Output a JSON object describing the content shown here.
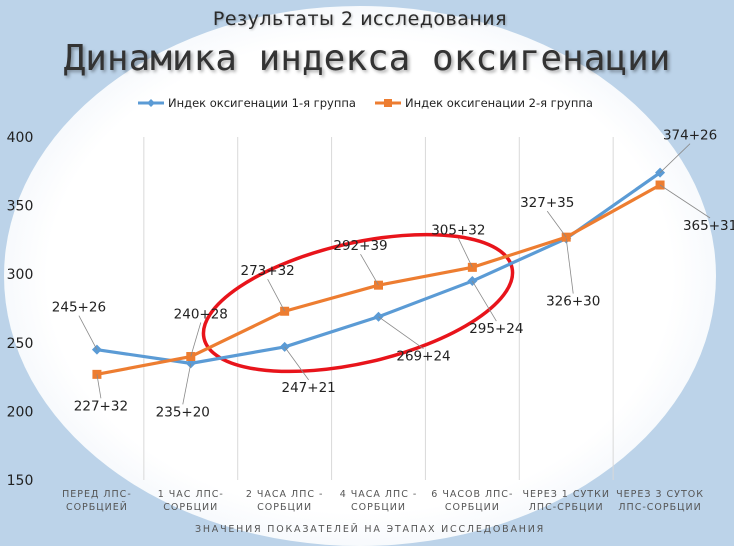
{
  "header": {
    "subtitle": "Результаты 2 исследования",
    "title": "Динамика индекса оксигенации"
  },
  "chart_data": {
    "type": "line",
    "xlabel": "ЗНАЧЕНИЯ ПОКАЗАТЕЛЕЙ НА ЭТАПАХ ИССЛЕДОВАНИЯ",
    "ylabel": "",
    "ylim": [
      150,
      400
    ],
    "yticks": [
      400,
      350,
      300,
      250,
      200,
      150
    ],
    "grid": "vertical",
    "legend_position": "top",
    "categories": [
      "ПЕРЕД ЛПС-СОРБЦИЕЙ",
      "1 ЧАС ЛПС-СОРБЦИИ",
      "2 ЧАСА ЛПС - СОРБЦИИ",
      "4 ЧАСА ЛПС - СОРБЦИИ",
      "6 ЧАСОВ ЛПС-СОРБЦИИ",
      "ЧЕРЕЗ 1 СУТКИ ЛПС-СРБЦИИ",
      "ЧЕРЕЗ 3 СУТОК ЛПС-СОРБЦИИ"
    ],
    "series": [
      {
        "name": "Индек оксигенации 1-я группа",
        "color": "#5b9bd5",
        "marker": "diamond",
        "values": [
          245,
          235,
          247,
          269,
          295,
          326,
          374
        ],
        "labels": [
          "245+26",
          "235+20",
          "247+21",
          "269+24",
          "295+24",
          "326+30",
          "374+26"
        ]
      },
      {
        "name": "Индек оксигенации 2-я группа",
        "color": "#ed7d31",
        "marker": "square",
        "values": [
          227,
          240,
          273,
          292,
          305,
          327,
          365
        ],
        "labels": [
          "227+32",
          "240+28",
          "273+32",
          "292+39",
          "305+32",
          "327+35",
          "365+31"
        ]
      }
    ],
    "annotations": [
      {
        "type": "ellipse",
        "color": "#e8141b",
        "description": "red ellipse highlighting 1-6 hour segment"
      }
    ]
  }
}
